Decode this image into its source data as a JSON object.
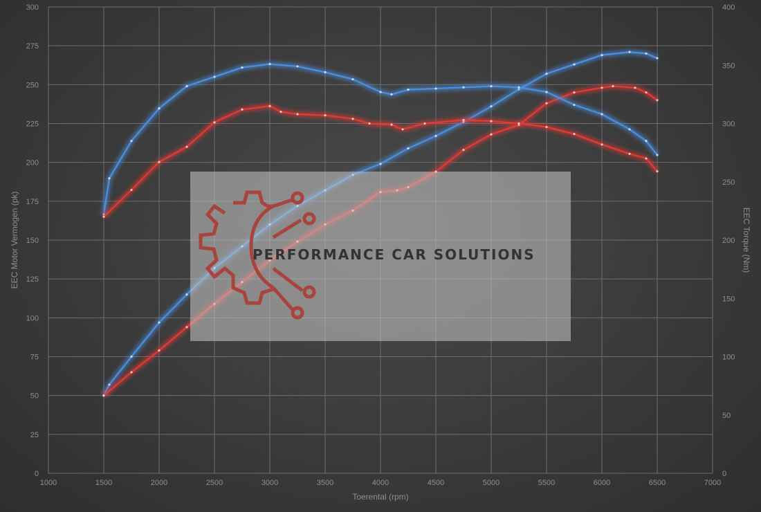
{
  "chart_data": {
    "type": "line",
    "title": "",
    "xlabel": "Toerental (rpm)",
    "ylabel_left": "EEC Motor Vermogen (pk)",
    "ylabel_right": "EEC Torque (Nm)",
    "xlim": [
      1000,
      7000
    ],
    "xticks": [
      1000,
      1500,
      2000,
      2500,
      3000,
      3500,
      4000,
      4500,
      5000,
      5500,
      6000,
      6500,
      7000
    ],
    "ylim_left": [
      0,
      300
    ],
    "yticks_left": [
      0,
      25,
      50,
      75,
      100,
      125,
      150,
      175,
      200,
      225,
      250,
      275,
      300
    ],
    "ylim_right": [
      0,
      400
    ],
    "yticks_right": [
      0,
      50,
      100,
      150,
      200,
      250,
      300,
      350,
      400
    ],
    "grid": true,
    "colors": {
      "blue": "#4a90e2",
      "red": "#e53935"
    },
    "series": [
      {
        "axis": "left",
        "color": "blue",
        "x": [
          1500,
          1550,
          1750,
          2000,
          2250,
          2500,
          2750,
          3000,
          3250,
          3500,
          3750,
          4000,
          4250,
          4500,
          4750,
          5000,
          5250,
          5500,
          5750,
          6000,
          6250,
          6400,
          6500
        ],
        "y": [
          50,
          57,
          75,
          97,
          115,
          132,
          146,
          160,
          172,
          182,
          192,
          199,
          209,
          217,
          226,
          236,
          247,
          257,
          263,
          269,
          271,
          270,
          267
        ]
      },
      {
        "axis": "left",
        "color": "red",
        "x": [
          1500,
          1750,
          2000,
          2250,
          2500,
          2750,
          3000,
          3250,
          3500,
          3750,
          4000,
          4150,
          4250,
          4500,
          4750,
          5000,
          5250,
          5500,
          5750,
          6000,
          6100,
          6300,
          6400,
          6500
        ],
        "y": [
          50,
          65,
          79,
          94,
          109,
          123,
          137,
          149,
          160,
          169,
          181,
          182,
          184,
          194,
          208,
          218,
          224,
          238,
          245,
          248,
          249,
          248,
          245,
          240
        ]
      },
      {
        "axis": "right",
        "color": "blue",
        "x": [
          1500,
          1550,
          1750,
          2000,
          2250,
          2500,
          2750,
          3000,
          3250,
          3500,
          3750,
          4000,
          4100,
          4250,
          4500,
          4750,
          5000,
          5250,
          5500,
          5750,
          6000,
          6250,
          6400,
          6500
        ],
        "y": [
          222,
          253,
          285,
          313,
          332,
          340,
          348,
          351,
          349,
          344,
          338,
          327,
          325,
          329,
          330,
          331,
          332,
          331,
          327,
          316,
          308,
          295,
          285,
          273
        ]
      },
      {
        "axis": "right",
        "color": "red",
        "x": [
          1500,
          1750,
          2000,
          2250,
          2500,
          2750,
          3000,
          3100,
          3250,
          3500,
          3750,
          3900,
          4100,
          4200,
          4400,
          4750,
          5000,
          5250,
          5500,
          5750,
          6000,
          6250,
          6400,
          6500
        ],
        "y": [
          220,
          243,
          267,
          280,
          301,
          312,
          315,
          310,
          308,
          307,
          304,
          300,
          299,
          295,
          300,
          303,
          302,
          300,
          297,
          291,
          282,
          274,
          270,
          259
        ]
      }
    ]
  },
  "watermark": {
    "text": "PERFORMANCE CAR SOLUTIONS"
  }
}
